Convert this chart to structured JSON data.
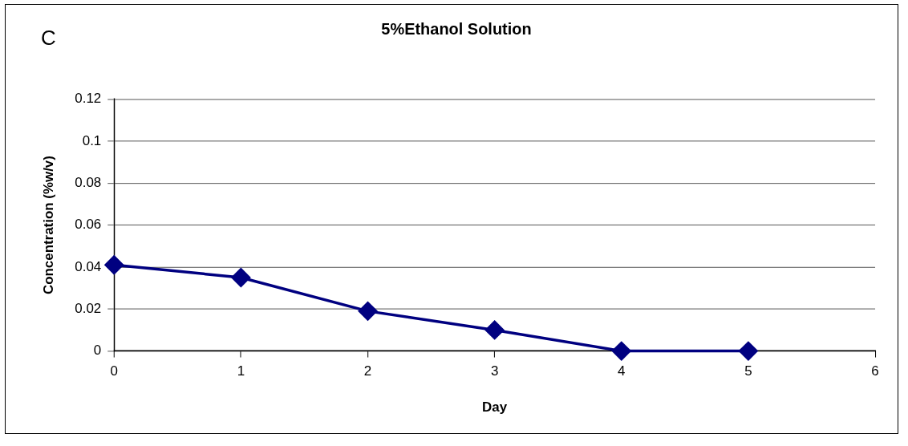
{
  "chart_data": {
    "type": "line",
    "title": "5%Ethanol Solution",
    "xlabel": "Day",
    "ylabel": "Concentration (%w/v)",
    "annotations": [
      "C"
    ],
    "x": [
      0,
      1,
      2,
      3,
      4,
      5
    ],
    "series": [
      {
        "color": "#000080",
        "values": [
          0.041,
          0.035,
          0.019,
          0.01,
          0,
          0
        ]
      }
    ],
    "xlim": [
      0,
      6
    ],
    "xticks": [
      0,
      1,
      2,
      3,
      4,
      5,
      6
    ],
    "ylim": [
      0,
      0.12
    ],
    "yticks": [
      0,
      0.02,
      0.04,
      0.06,
      0.08,
      0.1,
      0.12
    ],
    "grid": "y",
    "legend": false,
    "marker": "diamond",
    "line_style": "solid"
  }
}
